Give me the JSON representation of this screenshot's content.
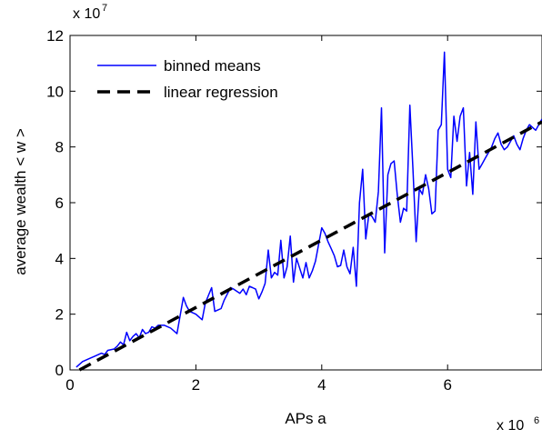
{
  "chart_data": {
    "type": "line",
    "xlabel": "APs a",
    "ylabel": "average wealth < w >",
    "x_multiplier": {
      "base": "x 10",
      "exponent": "6"
    },
    "y_multiplier": {
      "base": "x 10",
      "exponent": "7"
    },
    "xlim": [
      0,
      7.5
    ],
    "ylim": [
      0,
      12
    ],
    "x_ticks": [
      0,
      2,
      4,
      6
    ],
    "x_tick_labels": [
      "0",
      "2",
      "4",
      "6"
    ],
    "y_ticks": [
      0,
      2,
      4,
      6,
      8,
      10,
      12
    ],
    "y_tick_labels": [
      "0",
      "2",
      "4",
      "6",
      "8",
      "10",
      "12"
    ],
    "grid": false,
    "legend": {
      "position": "top-left",
      "entries": [
        "binned means",
        "linear regression"
      ]
    },
    "series": [
      {
        "name": "binned means",
        "style": "solid",
        "color": "#0000ff",
        "x": [
          0.1,
          0.2,
          0.3,
          0.4,
          0.5,
          0.55,
          0.6,
          0.7,
          0.75,
          0.8,
          0.85,
          0.9,
          0.95,
          1.0,
          1.05,
          1.1,
          1.15,
          1.2,
          1.25,
          1.3,
          1.35,
          1.4,
          1.5,
          1.6,
          1.7,
          1.8,
          1.85,
          1.9,
          2.0,
          2.1,
          2.15,
          2.25,
          2.3,
          2.35,
          2.4,
          2.45,
          2.55,
          2.6,
          2.7,
          2.75,
          2.8,
          2.85,
          2.9,
          2.95,
          3.0,
          3.05,
          3.1,
          3.15,
          3.2,
          3.25,
          3.3,
          3.35,
          3.4,
          3.45,
          3.5,
          3.55,
          3.6,
          3.7,
          3.75,
          3.8,
          3.85,
          3.9,
          4.0,
          4.05,
          4.1,
          4.15,
          4.2,
          4.25,
          4.3,
          4.35,
          4.4,
          4.45,
          4.5,
          4.55,
          4.6,
          4.65,
          4.7,
          4.75,
          4.8,
          4.85,
          4.9,
          4.95,
          5.0,
          5.05,
          5.1,
          5.15,
          5.2,
          5.25,
          5.3,
          5.35,
          5.4,
          5.45,
          5.5,
          5.55,
          5.6,
          5.65,
          5.7,
          5.75,
          5.8,
          5.85,
          5.9,
          5.95,
          6.0,
          6.05,
          6.1,
          6.15,
          6.2,
          6.25,
          6.3,
          6.35,
          6.4,
          6.45,
          6.5,
          6.55,
          6.6,
          6.65,
          6.7,
          6.75,
          6.8,
          6.85,
          6.9,
          6.95,
          7.0,
          7.05,
          7.1,
          7.15,
          7.2,
          7.25,
          7.3,
          7.35,
          7.4,
          7.45,
          7.5
        ],
        "y": [
          0.1,
          0.3,
          0.4,
          0.5,
          0.6,
          0.55,
          0.7,
          0.75,
          0.85,
          1.0,
          0.9,
          1.35,
          1.05,
          1.2,
          1.3,
          1.15,
          1.45,
          1.3,
          1.35,
          1.55,
          1.5,
          1.6,
          1.6,
          1.5,
          1.3,
          2.6,
          2.3,
          2.1,
          2.0,
          1.8,
          2.4,
          2.95,
          2.1,
          2.15,
          2.2,
          2.5,
          2.95,
          2.9,
          2.75,
          2.9,
          2.7,
          3.0,
          2.95,
          2.9,
          2.55,
          2.8,
          3.1,
          4.3,
          3.3,
          3.5,
          3.4,
          4.65,
          3.3,
          3.7,
          4.8,
          3.15,
          4.0,
          3.3,
          3.85,
          3.3,
          3.55,
          3.9,
          5.1,
          4.9,
          4.6,
          4.35,
          4.1,
          3.7,
          3.75,
          4.3,
          3.7,
          3.45,
          4.4,
          3.0,
          6.0,
          7.2,
          4.7,
          5.6,
          5.5,
          5.3,
          6.4,
          9.4,
          4.2,
          7.0,
          7.4,
          7.5,
          6.3,
          5.3,
          5.8,
          5.7,
          9.5,
          7.2,
          4.6,
          6.5,
          6.3,
          7.0,
          6.5,
          5.6,
          5.7,
          8.6,
          8.8,
          11.4,
          7.2,
          6.9,
          9.1,
          8.2,
          9.1,
          9.4,
          6.6,
          7.8,
          6.3,
          8.9,
          7.2,
          7.4,
          7.6,
          7.8,
          8.0,
          8.3,
          8.5,
          8.1,
          7.9,
          8.0,
          8.2,
          8.4,
          8.1,
          7.9,
          8.3,
          8.6,
          8.8,
          8.7,
          8.6,
          8.8,
          9.0
        ]
      },
      {
        "name": "linear regression",
        "style": "dashed",
        "color": "#000000",
        "x": [
          0.15,
          7.5
        ],
        "y": [
          0.0,
          8.9
        ]
      }
    ]
  }
}
